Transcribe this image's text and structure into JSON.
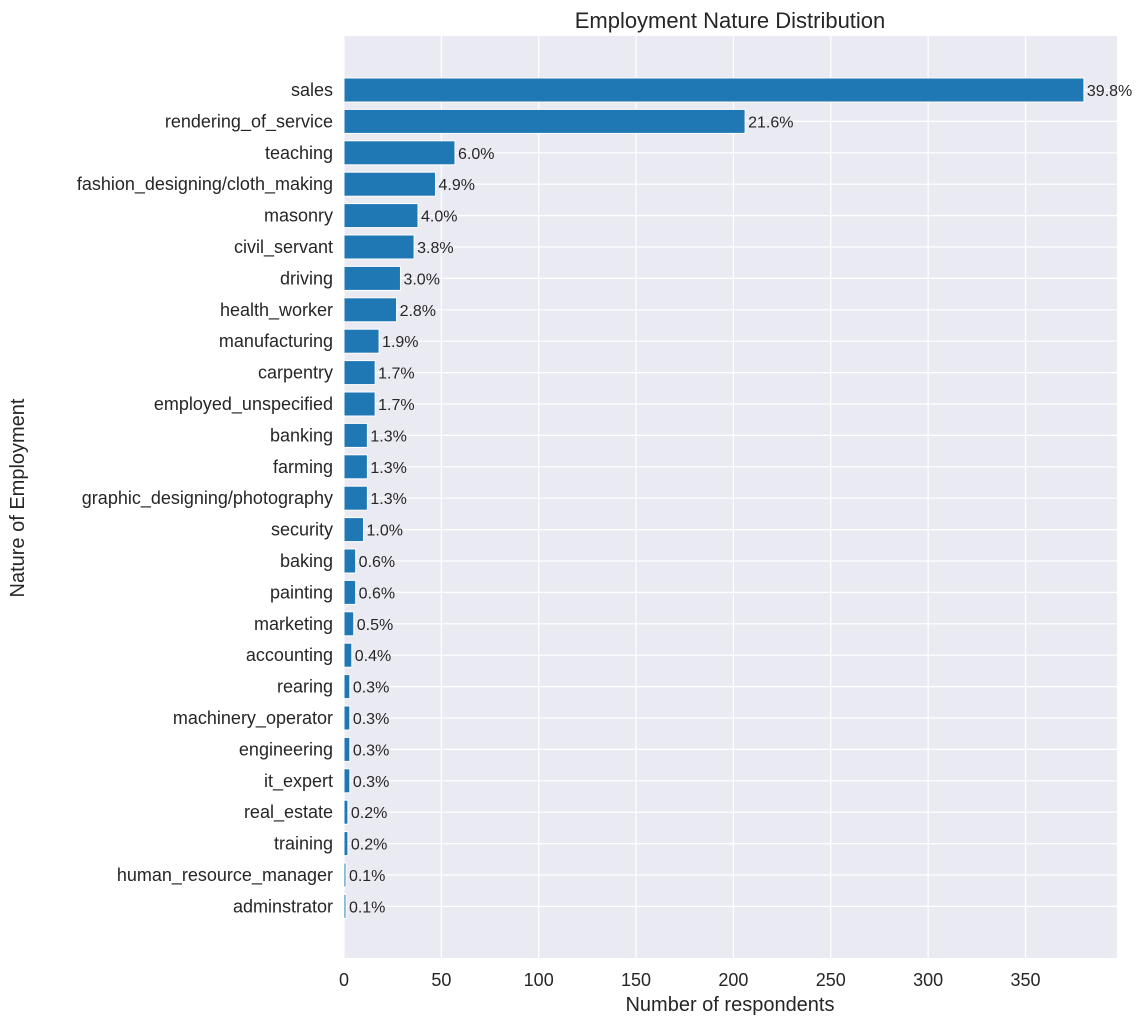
{
  "chart_data": {
    "type": "bar",
    "orientation": "horizontal",
    "title": "Employment Nature Distribution",
    "xlabel": "Number of respondents",
    "ylabel": "Nature of Employment",
    "xlim": [
      0,
      397
    ],
    "xticks": [
      0,
      50,
      100,
      150,
      200,
      250,
      300,
      350
    ],
    "grid": true,
    "background_color": "#eaeaf2",
    "bar_color": "#1f77b4",
    "categories": [
      "sales",
      "rendering_of_service",
      "teaching",
      "fashion_designing/cloth_making",
      "masonry",
      "civil_servant",
      "driving",
      "health_worker",
      "manufacturing",
      "carpentry",
      "employed_unspecified",
      "banking",
      "farming",
      "graphic_designing/photography",
      "security",
      "baking",
      "painting",
      "marketing",
      "accounting",
      "rearing",
      "machinery_operator",
      "engineering",
      "it_expert",
      "real_estate",
      "training",
      "human_resource_manager",
      "adminstrator"
    ],
    "values": [
      380,
      206,
      57,
      47,
      38,
      36,
      29,
      27,
      18,
      16,
      16,
      12,
      12,
      12,
      10,
      6,
      6,
      5,
      4,
      3,
      3,
      3,
      3,
      2,
      2,
      1,
      1
    ],
    "data_labels": [
      "39.8%",
      "21.6%",
      "6.0%",
      "4.9%",
      "4.0%",
      "3.8%",
      "3.0%",
      "2.8%",
      "1.9%",
      "1.7%",
      "1.7%",
      "1.3%",
      "1.3%",
      "1.3%",
      "1.0%",
      "0.6%",
      "0.6%",
      "0.5%",
      "0.4%",
      "0.3%",
      "0.3%",
      "0.3%",
      "0.3%",
      "0.2%",
      "0.2%",
      "0.1%",
      "0.1%"
    ]
  }
}
